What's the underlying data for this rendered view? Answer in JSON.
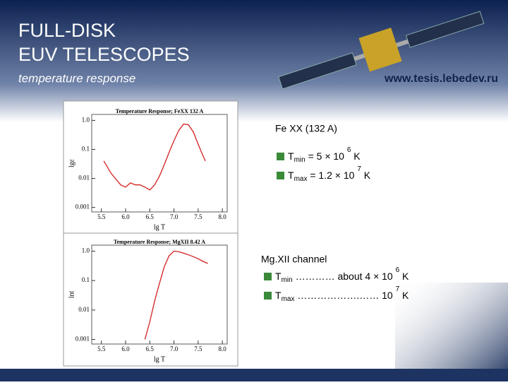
{
  "header": {
    "title_line1": "FULL-DISK",
    "title_line2": "EUV TELESCOPES",
    "subtitle": "temperature response",
    "url": "www.tesis.lebedev.ru"
  },
  "fe_block": {
    "heading": "Fe XX  (132 A)",
    "items": [
      {
        "symbol": "T",
        "sub": "min",
        "text": " =  5 × 10 ",
        "sup": "6",
        "unit": " K"
      },
      {
        "symbol": "T",
        "sub": "max",
        "text": " =  1.2 × 10 ",
        "sup": "7",
        "unit": " K"
      }
    ]
  },
  "mg_block": {
    "heading": "Mg.XII channel",
    "items": [
      {
        "symbol": "T",
        "sub": "min",
        "text": " ………… about  4 × 10 ",
        "sup": "6",
        "unit": " K"
      },
      {
        "symbol": "T",
        "sub": "max",
        "text": " ……………….…… 10 ",
        "sup": "7",
        "unit": " K"
      }
    ]
  },
  "chart_data": [
    {
      "type": "line",
      "title": "Temperature Response; FeXX 132 A",
      "xlabel": "lg T",
      "ylabel": "lgε",
      "color": "#d42020",
      "log_y": true,
      "x": [
        5.55,
        5.7,
        5.9,
        6.0,
        6.1,
        6.2,
        6.3,
        6.4,
        6.5,
        6.6,
        6.7,
        6.8,
        6.9,
        7.0,
        7.1,
        7.2,
        7.3,
        7.4,
        7.5,
        7.6,
        7.65
      ],
      "values": [
        0.04,
        0.015,
        0.006,
        0.005,
        0.007,
        0.006,
        0.006,
        0.005,
        0.004,
        0.006,
        0.012,
        0.03,
        0.08,
        0.2,
        0.45,
        0.75,
        0.7,
        0.4,
        0.15,
        0.06,
        0.04
      ],
      "xlim": [
        5.3,
        8.1
      ],
      "ylim": [
        0.0007,
        1.6
      ],
      "xticks": [
        5.5,
        {
          "value": 6,
          "label": "6.0"
        },
        6.5,
        {
          "value": 7,
          "label": "7.0"
        },
        7.5,
        {
          "value": 8,
          "label": "8.0"
        }
      ],
      "yticks": [
        {
          "value": 1,
          "label": "1.0"
        },
        0.1,
        0.01,
        0.001
      ]
    },
    {
      "type": "line",
      "title": "Temperature Response; MgXII 8.42 A",
      "xlabel": "lg T",
      "ylabel": "lnt",
      "color": "#d42020",
      "log_y": true,
      "x": [
        6.4,
        6.5,
        6.6,
        6.7,
        6.8,
        6.9,
        7.0,
        7.1,
        7.2,
        7.3,
        7.4,
        7.5,
        7.6,
        7.7
      ],
      "values": [
        0.001,
        0.004,
        0.02,
        0.08,
        0.3,
        0.7,
        1.0,
        0.95,
        0.85,
        0.75,
        0.65,
        0.55,
        0.45,
        0.38
      ],
      "xlim": [
        5.3,
        8.1
      ],
      "ylim": [
        0.0007,
        1.6
      ],
      "xticks": [
        5.5,
        {
          "value": 6,
          "label": "6.0"
        },
        6.5,
        {
          "value": 7,
          "label": "7.0"
        },
        7.5,
        {
          "value": 8,
          "label": "8.0"
        }
      ],
      "yticks": [
        {
          "value": 1,
          "label": "1.0"
        },
        0.1,
        0.01,
        0.001
      ]
    }
  ]
}
